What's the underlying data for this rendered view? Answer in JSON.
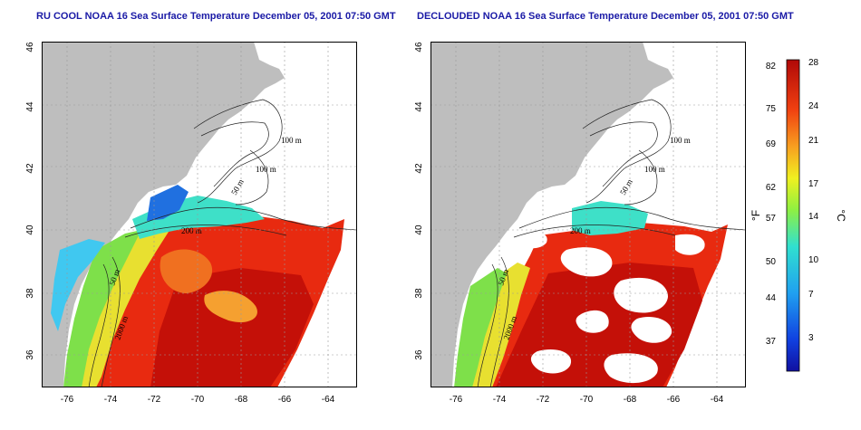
{
  "titles": {
    "left": "RU COOL NOAA 16 Sea Surface Temperature December 05, 2001 07:50 GMT",
    "right": "DECLOUDED NOAA 16 Sea Surface Temperature December 05, 2001 07:50 GMT"
  },
  "axes": {
    "x_ticks": [
      "-76",
      "-74",
      "-72",
      "-70",
      "-68",
      "-66",
      "-64"
    ],
    "y_ticks": [
      "46",
      "44",
      "42",
      "40",
      "38",
      "36"
    ]
  },
  "contour_labels": [
    "100 m",
    "100 m",
    "50 m",
    "200 m",
    "50 m",
    "2000 m"
  ],
  "colorbar": {
    "unit_f": "°F",
    "unit_c": "°C",
    "f_ticks": [
      "82",
      "75",
      "69",
      "62",
      "57",
      "50",
      "44",
      "37"
    ],
    "c_ticks": [
      "28",
      "24",
      "21",
      "17",
      "14",
      "10",
      "7",
      "3"
    ]
  },
  "colors": {
    "land": "#bebebe",
    "ocean_warm": "#e82a10",
    "ocean_hot": "#c41008",
    "shelf_green": "#7ee04a",
    "shelf_yellow": "#e8e030",
    "cool_cyan": "#3ee0c8",
    "cloud_white": "#ffffff",
    "title_blue": "#1a1aa6"
  }
}
